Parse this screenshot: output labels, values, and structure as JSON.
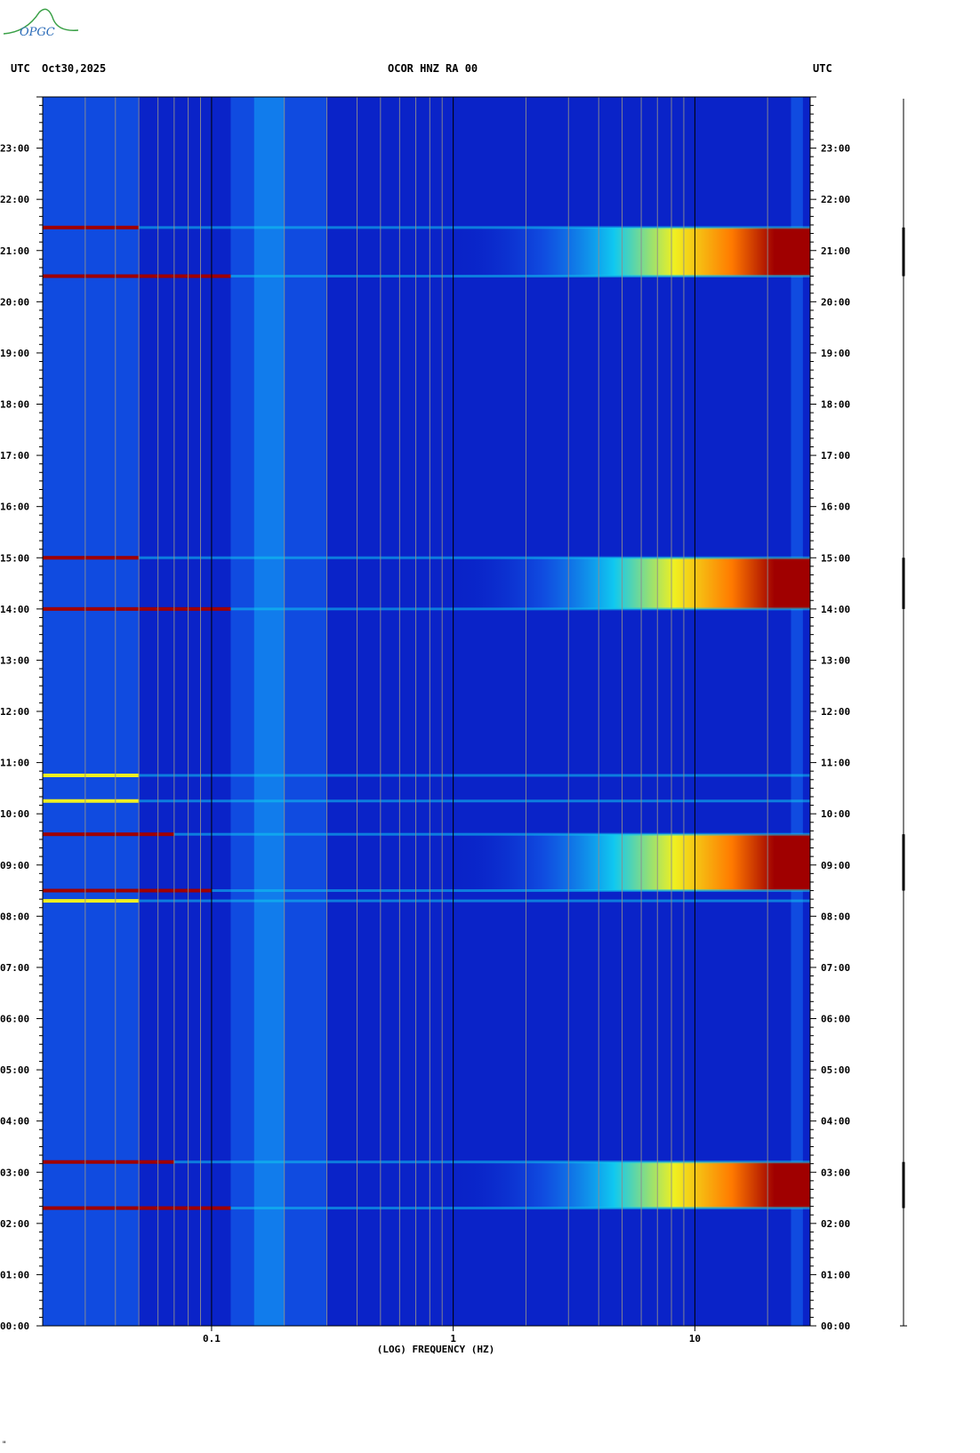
{
  "header": {
    "left_tz": "UTC",
    "date": "Oct30,2025",
    "station": "OCOR HNZ RA 00",
    "right_tz": "UTC"
  },
  "logo": {
    "text": "OPGC"
  },
  "footer_mark": "\"",
  "colors": {
    "background": "#0a23c8",
    "band_bright": "#10c8f0",
    "band_mid": "#1466f0",
    "event_hot": "#a00000",
    "event_orange": "#ff7a00",
    "event_yellow": "#f0f020",
    "gridline": "#8e8e8e"
  },
  "chart_data": {
    "type": "heatmap",
    "title": "",
    "xlabel": "(LOG) FREQUENCY (HZ)",
    "ylabel": "",
    "x_scale": "log",
    "xlim": [
      0.02,
      30
    ],
    "ylim_hours": [
      0,
      24
    ],
    "x_ticks": [
      {
        "value": 0.1,
        "label": "0.1"
      },
      {
        "value": 1,
        "label": "1"
      },
      {
        "value": 10,
        "label": "10"
      }
    ],
    "y_ticks": [
      {
        "hour": 0,
        "label": "00:00"
      },
      {
        "hour": 1,
        "label": "01:00"
      },
      {
        "hour": 2,
        "label": "02:00"
      },
      {
        "hour": 3,
        "label": "03:00"
      },
      {
        "hour": 4,
        "label": "04:00"
      },
      {
        "hour": 5,
        "label": "05:00"
      },
      {
        "hour": 6,
        "label": "06:00"
      },
      {
        "hour": 7,
        "label": "07:00"
      },
      {
        "hour": 8,
        "label": "08:00"
      },
      {
        "hour": 9,
        "label": "09:00"
      },
      {
        "hour": 10,
        "label": "10:00"
      },
      {
        "hour": 11,
        "label": "11:00"
      },
      {
        "hour": 12,
        "label": "12:00"
      },
      {
        "hour": 13,
        "label": "13:00"
      },
      {
        "hour": 14,
        "label": "14:00"
      },
      {
        "hour": 15,
        "label": "15:00"
      },
      {
        "hour": 16,
        "label": "16:00"
      },
      {
        "hour": 17,
        "label": "17:00"
      },
      {
        "hour": 18,
        "label": "18:00"
      },
      {
        "hour": 19,
        "label": "19:00"
      },
      {
        "hour": 20,
        "label": "20:00"
      },
      {
        "hour": 21,
        "label": "21:00"
      },
      {
        "hour": 22,
        "label": "22:00"
      },
      {
        "hour": 23,
        "label": "23:00"
      }
    ],
    "gridline_freqs": [
      0.03,
      0.04,
      0.05,
      0.06,
      0.07,
      0.08,
      0.09,
      0.2,
      0.3,
      0.4,
      0.5,
      0.6,
      0.7,
      0.8,
      0.9,
      2,
      3,
      4,
      5,
      6,
      7,
      8,
      9,
      20
    ],
    "major_gridline_freqs": [
      0.1,
      1,
      10
    ],
    "background_bands": [
      {
        "f_start": 0.02,
        "f_end": 0.05,
        "level": "mid"
      },
      {
        "f_start": 0.15,
        "f_end": 0.2,
        "level": "bright"
      },
      {
        "f_start": 0.12,
        "f_end": 0.3,
        "level": "mid"
      },
      {
        "f_start": 25,
        "f_end": 28,
        "level": "mid"
      }
    ],
    "high_freq_events": [
      {
        "start_hour": 2.3,
        "end_hour": 3.2
      },
      {
        "start_hour": 8.5,
        "end_hour": 9.6
      },
      {
        "start_hour": 14.0,
        "end_hour": 15.0
      },
      {
        "start_hour": 20.5,
        "end_hour": 21.45
      }
    ],
    "horizontal_lines": [
      {
        "hour": 2.3,
        "f_end": 0.12,
        "color": "hot"
      },
      {
        "hour": 3.2,
        "f_end": 0.07,
        "color": "hot"
      },
      {
        "hour": 8.3,
        "f_end": 0.05,
        "color": "yellow"
      },
      {
        "hour": 8.5,
        "f_end": 0.1,
        "color": "hot"
      },
      {
        "hour": 9.6,
        "f_end": 0.07,
        "color": "hot"
      },
      {
        "hour": 10.25,
        "f_end": 0.05,
        "color": "yellow"
      },
      {
        "hour": 10.75,
        "f_end": 0.05,
        "color": "yellow"
      },
      {
        "hour": 14.0,
        "f_end": 0.12,
        "color": "hot"
      },
      {
        "hour": 15.0,
        "f_end": 0.05,
        "color": "hot"
      },
      {
        "hour": 20.5,
        "f_end": 0.12,
        "color": "hot"
      },
      {
        "hour": 21.45,
        "f_end": 0.05,
        "color": "hot"
      }
    ]
  }
}
